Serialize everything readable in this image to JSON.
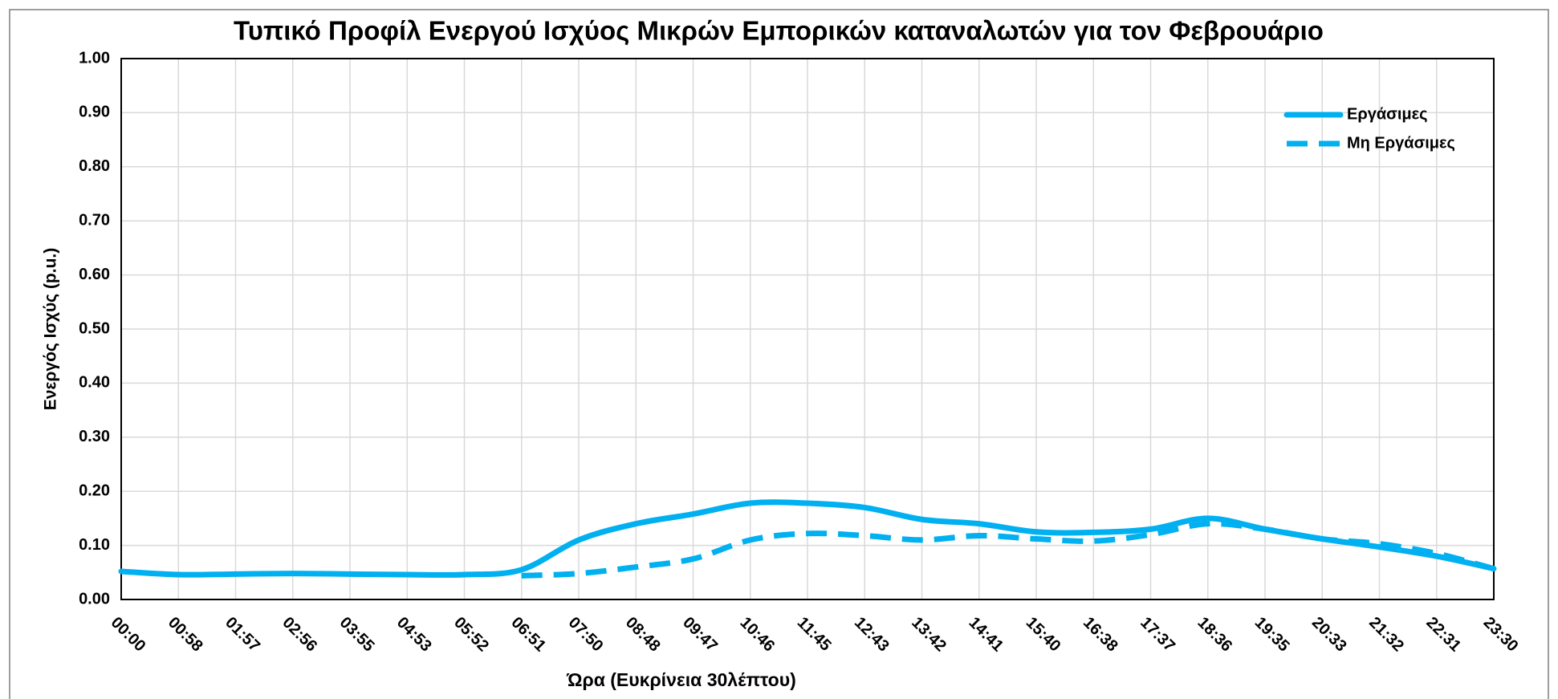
{
  "chart_data": {
    "type": "line",
    "title": "Τυπικό Προφίλ Ενεργού Ισχύος Μικρών Εμπορικών καταναλωτών για τον Φεβρουάριο",
    "x_label": "Ώρα (Ευκρίνεια 30λέπτου)",
    "y_label": "Ενεργός Ισχύς (p.u.)",
    "categories": [
      "00:00",
      "00:58",
      "01:57",
      "02:56",
      "03:55",
      "04:53",
      "05:52",
      "06:51",
      "07:50",
      "08:48",
      "09:47",
      "10:46",
      "11:45",
      "12:43",
      "13:42",
      "14:41",
      "15:40",
      "16:38",
      "17:37",
      "18:36",
      "19:35",
      "20:33",
      "21:32",
      "22:31",
      "23:30"
    ],
    "series": [
      {
        "name": "Εργάσιμες",
        "color": "#00b0f0",
        "dash": false,
        "values": [
          0.052,
          0.046,
          0.047,
          0.048,
          0.047,
          0.046,
          0.046,
          0.055,
          0.11,
          0.14,
          0.158,
          0.178,
          0.178,
          0.17,
          0.148,
          0.14,
          0.125,
          0.124,
          0.13,
          0.15,
          0.13,
          0.112,
          0.097,
          0.08,
          0.057
        ]
      },
      {
        "name": "Μη Εργάσιμες",
        "color": "#00b0f0",
        "dash": true,
        "values": [
          null,
          null,
          null,
          null,
          null,
          null,
          null,
          0.044,
          0.048,
          0.06,
          0.075,
          0.11,
          0.122,
          0.118,
          0.11,
          0.118,
          0.112,
          0.108,
          0.12,
          0.14,
          0.13,
          0.112,
          0.103,
          0.085,
          0.057
        ]
      }
    ],
    "ylim": [
      0,
      1
    ],
    "yticks": [
      {
        "value": 0,
        "label": "0.00"
      },
      {
        "value": 0.1,
        "label": "0.10"
      },
      {
        "value": 0.2,
        "label": "0.20"
      },
      {
        "value": 0.3,
        "label": "0.30"
      },
      {
        "value": 0.4,
        "label": "0.40"
      },
      {
        "value": 0.5,
        "label": "0.50"
      },
      {
        "value": 0.6,
        "label": "0.60"
      },
      {
        "value": 0.7,
        "label": "0.70"
      },
      {
        "value": 0.8,
        "label": "0.80"
      },
      {
        "value": 0.9,
        "label": "0.90"
      },
      {
        "value": 1,
        "label": "1.00"
      }
    ],
    "grid": true,
    "legend": "top-right"
  }
}
